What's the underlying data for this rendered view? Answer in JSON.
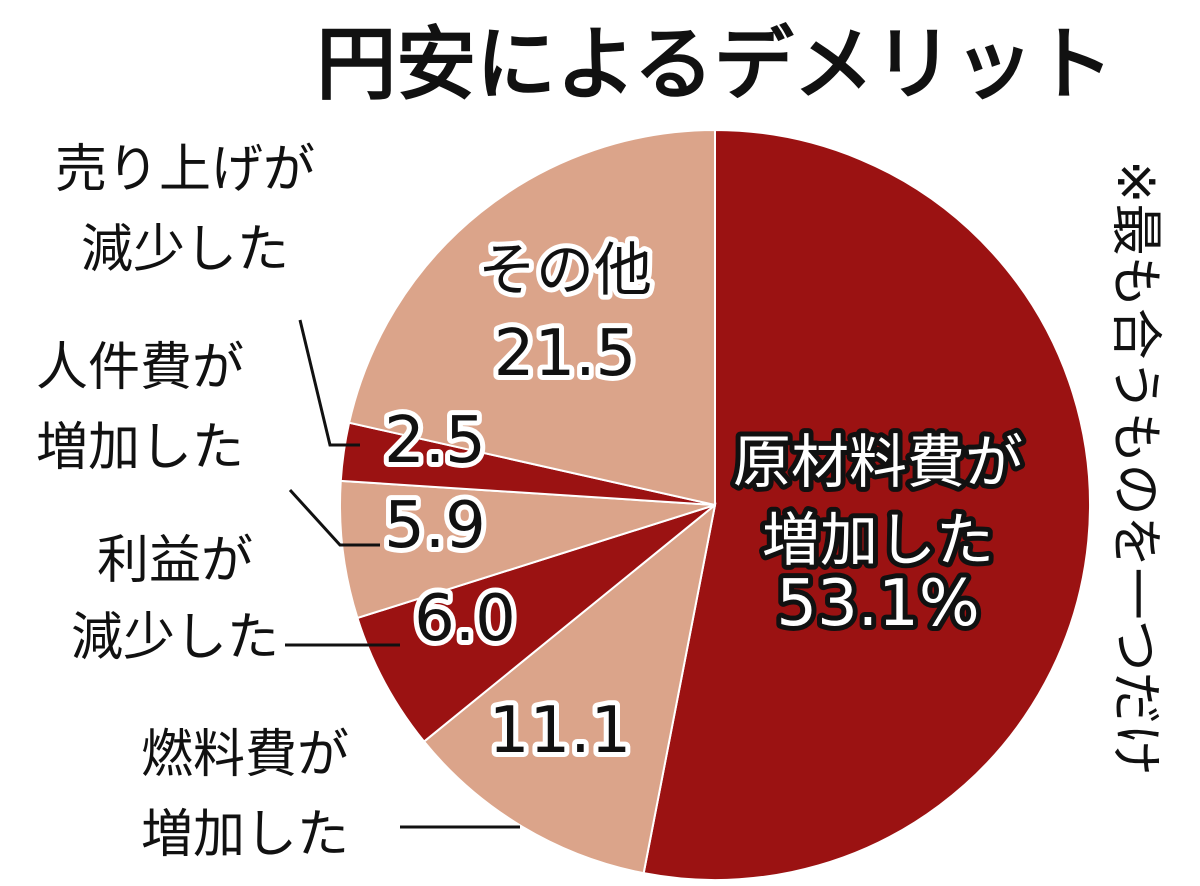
{
  "chart_data": {
    "type": "pie",
    "title": "円安によるデメリット",
    "unit": "%",
    "note": "※最も合うものを一つだけ",
    "slices": [
      {
        "label_lines": [
          "原材料費が",
          "増加した"
        ],
        "value": 53.1,
        "value_text": "53.1%",
        "color": "#9b1212"
      },
      {
        "label_lines": [
          "燃料費が",
          "増加した"
        ],
        "value": 11.1,
        "value_text": "11.1",
        "color": "#dba48a"
      },
      {
        "label_lines": [
          "利益が",
          "減少した"
        ],
        "value": 6.0,
        "value_text": "6.0",
        "color": "#9b1212"
      },
      {
        "label_lines": [
          "人件費が",
          "増加した"
        ],
        "value": 5.9,
        "value_text": "5.9",
        "color": "#dba48a"
      },
      {
        "label_lines": [
          "売り上げが",
          "減少した"
        ],
        "value": 2.5,
        "value_text": "2.5",
        "color": "#9b1212"
      },
      {
        "label_lines": [
          "その他"
        ],
        "value": 21.5,
        "value_text": "21.5",
        "color": "#dba48a"
      }
    ]
  }
}
